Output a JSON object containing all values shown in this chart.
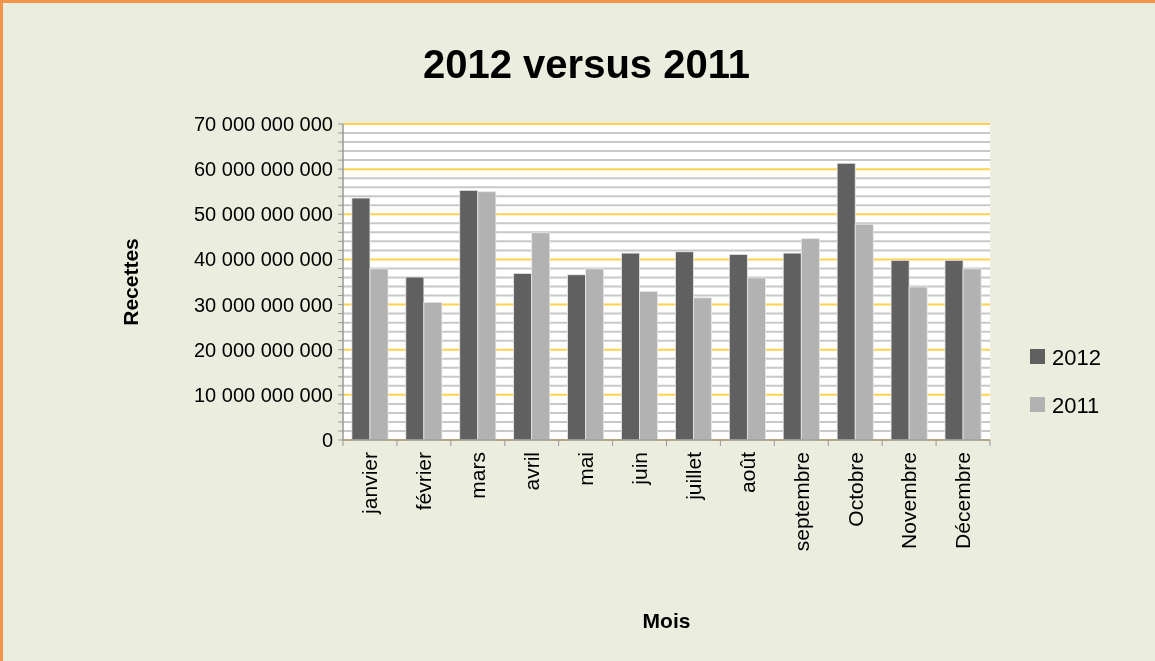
{
  "chart_data": {
    "type": "bar",
    "title": "2012 versus 2011",
    "xlabel": "Mois",
    "ylabel": "Recettes",
    "categories": [
      "janvier",
      "février",
      "mars",
      "avril",
      "mai",
      "juin",
      "juillet",
      "août",
      "septembre",
      "Octobre",
      "Novembre",
      "Décembre"
    ],
    "series": [
      {
        "name": "2012",
        "color": "#606060",
        "values": [
          53600000000,
          36100000000,
          55300000000,
          36900000000,
          36600000000,
          41400000000,
          41700000000,
          41100000000,
          41400000000,
          61300000000,
          39800000000,
          39800000000
        ]
      },
      {
        "name": "2011",
        "color": "#b2b2b2",
        "values": [
          37900000000,
          30500000000,
          55000000000,
          45900000000,
          37900000000,
          32900000000,
          31500000000,
          35900000000,
          44600000000,
          47800000000,
          33900000000,
          37900000000
        ]
      }
    ],
    "ylim": [
      0,
      70000000000
    ],
    "yticks": [
      {
        "value": 0,
        "label": "0"
      },
      {
        "value": 2000000000,
        "label": null
      },
      {
        "value": 4000000000,
        "label": null
      },
      {
        "value": 6000000000,
        "label": null
      },
      {
        "value": 8000000000,
        "label": null
      },
      {
        "value": 10000000000,
        "label": "10 000 000 000"
      },
      {
        "value": 12000000000,
        "label": null
      },
      {
        "value": 14000000000,
        "label": null
      },
      {
        "value": 16000000000,
        "label": null
      },
      {
        "value": 18000000000,
        "label": null
      },
      {
        "value": 20000000000,
        "label": "20 000 000 000"
      },
      {
        "value": 22000000000,
        "label": null
      },
      {
        "value": 24000000000,
        "label": null
      },
      {
        "value": 26000000000,
        "label": null
      },
      {
        "value": 28000000000,
        "label": null
      },
      {
        "value": 30000000000,
        "label": "30 000 000 000"
      },
      {
        "value": 32000000000,
        "label": null
      },
      {
        "value": 34000000000,
        "label": null
      },
      {
        "value": 36000000000,
        "label": null
      },
      {
        "value": 38000000000,
        "label": null
      },
      {
        "value": 40000000000,
        "label": "40 000 000 000"
      },
      {
        "value": 42000000000,
        "label": null
      },
      {
        "value": 44000000000,
        "label": null
      },
      {
        "value": 46000000000,
        "label": null
      },
      {
        "value": 48000000000,
        "label": null
      },
      {
        "value": 50000000000,
        "label": "50 000 000 000"
      },
      {
        "value": 52000000000,
        "label": null
      },
      {
        "value": 54000000000,
        "label": null
      },
      {
        "value": 56000000000,
        "label": null
      },
      {
        "value": 58000000000,
        "label": null
      },
      {
        "value": 60000000000,
        "label": "60 000 000 000"
      },
      {
        "value": 62000000000,
        "label": null
      },
      {
        "value": 64000000000,
        "label": null
      },
      {
        "value": 66000000000,
        "label": null
      },
      {
        "value": 68000000000,
        "label": null
      },
      {
        "value": 70000000000,
        "label": "70 000 000 000"
      }
    ],
    "grid": "y",
    "legend": "right"
  }
}
